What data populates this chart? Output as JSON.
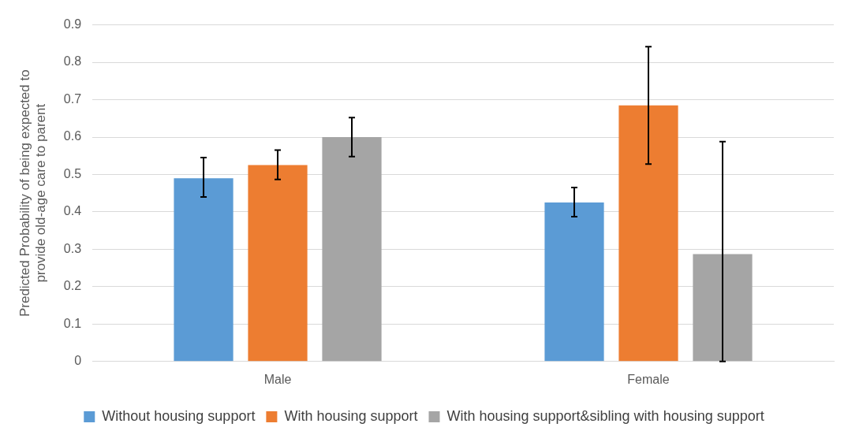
{
  "chart_data": {
    "type": "bar",
    "ylabel": "Predicted Probability of being expected to\nprovide old-age care to parent",
    "categories": [
      "Male",
      "Female"
    ],
    "series": [
      {
        "name": "Without housing support",
        "color": "#5b9bd5",
        "values": [
          0.49,
          0.425
        ],
        "errors": [
          [
            0.44,
            0.545
          ],
          [
            0.387,
            0.465
          ]
        ]
      },
      {
        "name": "With housing support",
        "color": "#ed7d31",
        "values": [
          0.525,
          0.685
        ],
        "errors": [
          [
            0.487,
            0.565
          ],
          [
            0.528,
            0.842
          ]
        ]
      },
      {
        "name": "With housing support&sibling with housing support",
        "color": "#a5a5a5",
        "values": [
          0.6,
          0.287
        ],
        "errors": [
          [
            0.548,
            0.652
          ],
          [
            0,
            0.588
          ]
        ]
      }
    ],
    "ylim": [
      0,
      0.9
    ],
    "yticks": [
      0,
      0.1,
      0.2,
      0.3,
      0.4,
      0.5,
      0.6,
      0.7,
      0.8,
      0.9
    ],
    "grid": "y",
    "legend": "bottom"
  }
}
